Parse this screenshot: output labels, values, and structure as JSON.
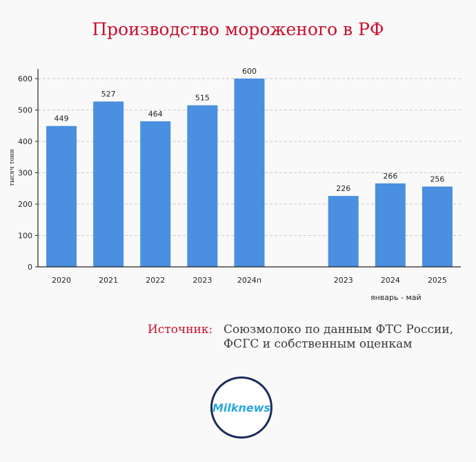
{
  "page": {
    "title": "Производство мороженого в РФ",
    "source_label": "Источник:",
    "source_lines": [
      "Союзмолоко по данным ФТС России,",
      "ФСГС и собственным оценкам"
    ],
    "logo_text": "Milknews"
  },
  "colors": {
    "bar": "#4a8fe0",
    "title": "#c8102e",
    "grid": "#c8c8c8",
    "axis": "#222222",
    "logo_ring": "#1c2b5a",
    "logo_text": "#2aa6e0"
  },
  "chart_data": {
    "type": "bar",
    "title": "Производство мороженого в РФ",
    "xlabel": "",
    "ylabel": "тысяч тонн",
    "ylim": [
      0,
      600
    ],
    "yticks": [
      0,
      100,
      200,
      300,
      400,
      500,
      600
    ],
    "grid": true,
    "legend": "none",
    "groups": [
      {
        "label": "",
        "categories": [
          "2020",
          "2021",
          "2022",
          "2023",
          "2024п"
        ],
        "values": [
          449,
          527,
          464,
          515,
          600
        ]
      },
      {
        "label": "январь - май",
        "categories": [
          "2023",
          "2024",
          "2025"
        ],
        "values": [
          226,
          266,
          256
        ]
      }
    ]
  }
}
